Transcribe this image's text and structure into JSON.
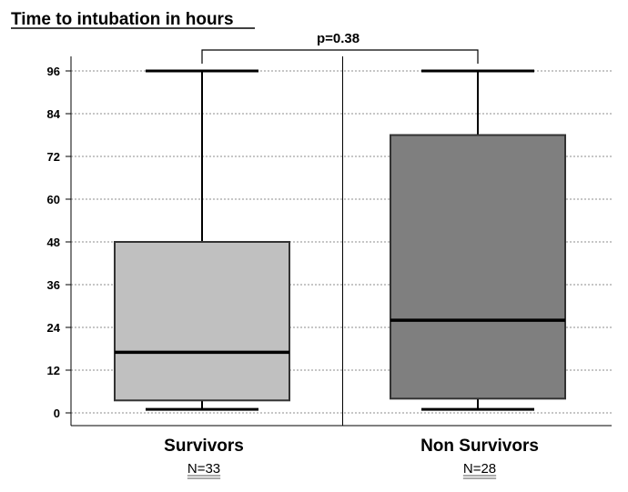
{
  "chart_data": {
    "type": "boxplot",
    "title": "Time to intubation in hours",
    "xlabel": "",
    "ylabel": "",
    "ylim": [
      0,
      96
    ],
    "yticks": [
      0,
      12,
      24,
      36,
      48,
      60,
      72,
      84,
      96
    ],
    "grid": true,
    "annotation": "p=0.38",
    "groups": [
      {
        "label": "Survivors",
        "n_label": "N=33",
        "color": "#c0c0c0",
        "min": 1,
        "q1": 3.5,
        "median": 17,
        "q3": 48,
        "max": 96
      },
      {
        "label": "Non Survivors",
        "n_label": "N=28",
        "color": "#7f7f7f",
        "min": 1,
        "q1": 4,
        "median": 26,
        "q3": 78,
        "max": 96
      }
    ]
  }
}
